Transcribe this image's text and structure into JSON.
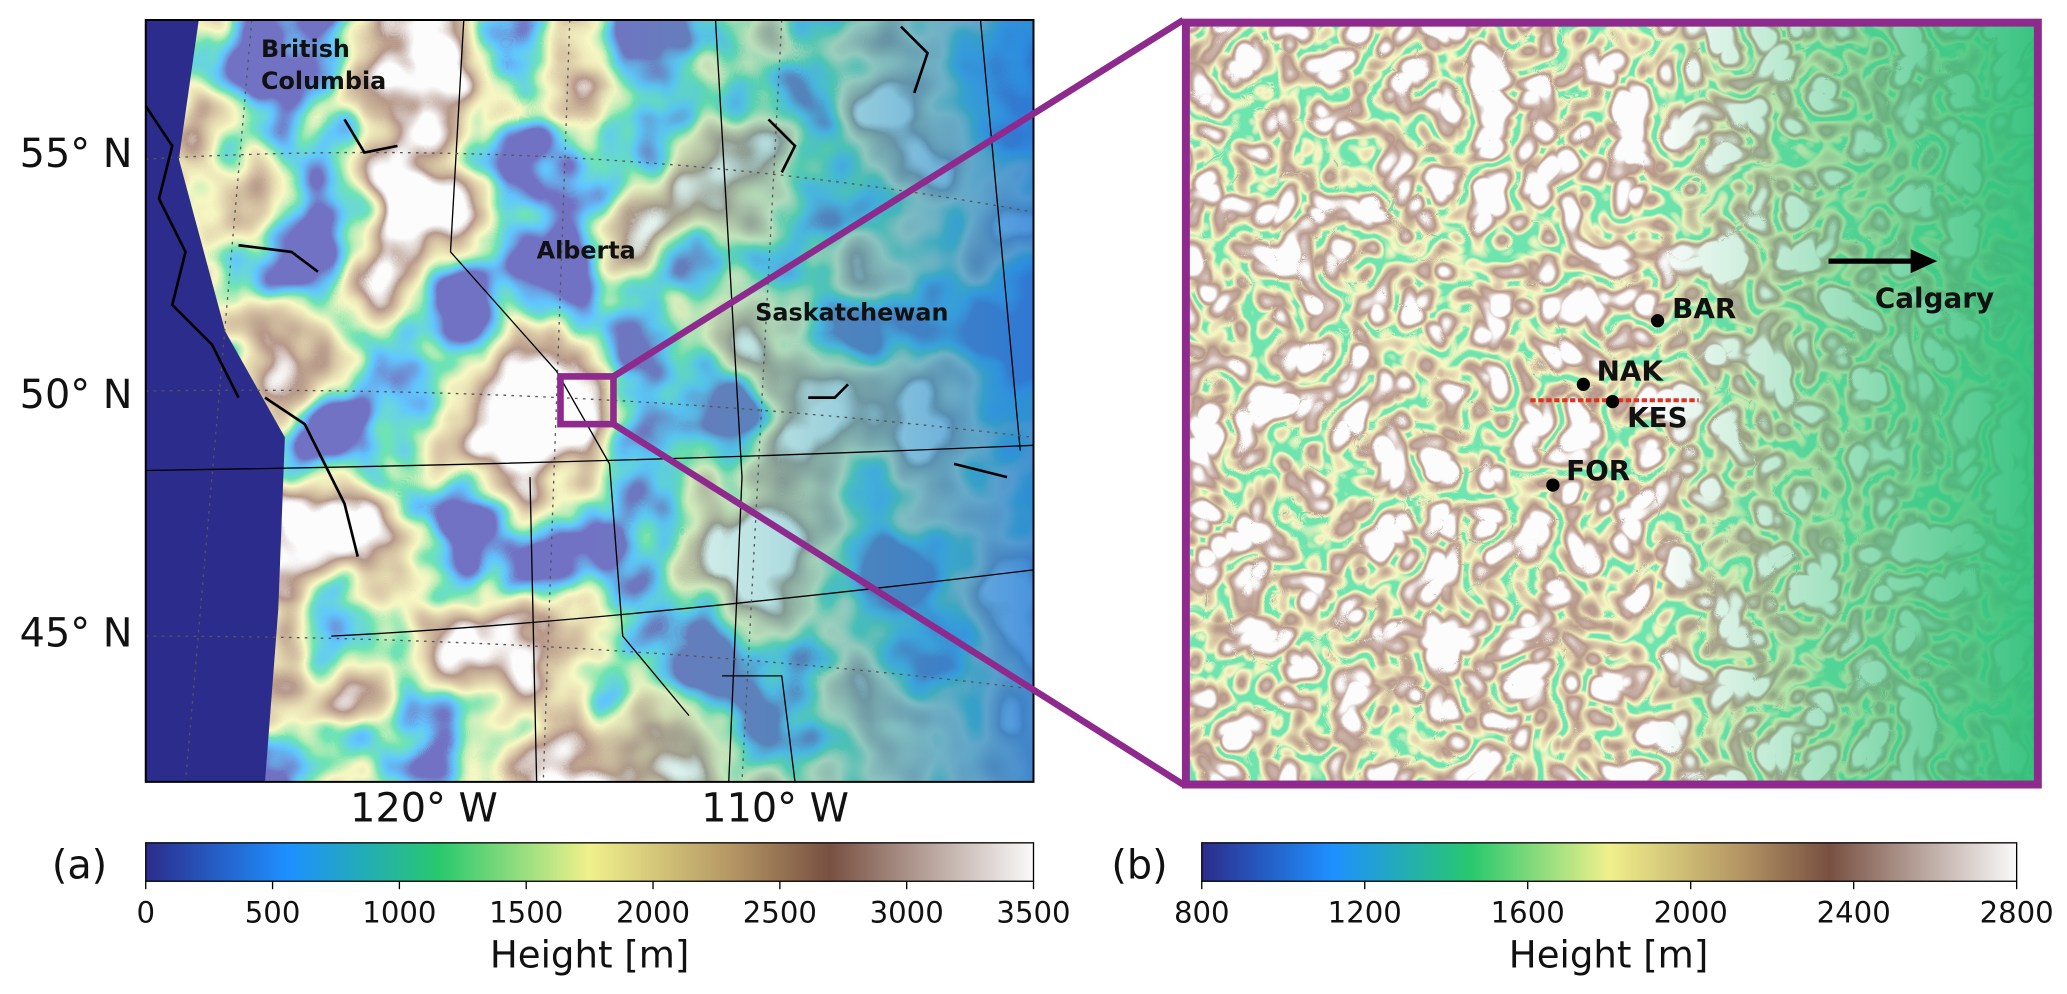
{
  "panel_a": {
    "label": "(a)",
    "lat_labels": [
      "55° N",
      "50° N",
      "45° N"
    ],
    "lon_labels": [
      "120° W",
      "110° W"
    ],
    "regions": {
      "bc": [
        "British",
        "Columbia"
      ],
      "alberta": "Alberta",
      "saskatchewan": "Saskatchewan"
    },
    "colorbar": {
      "clim": [
        0,
        3500
      ],
      "ticks": [
        0,
        500,
        1000,
        1500,
        2000,
        2500,
        3000,
        3500
      ],
      "label": "Height [m]"
    }
  },
  "panel_b": {
    "label": "(b)",
    "stations": [
      "BAR",
      "NAK",
      "KES",
      "FOR"
    ],
    "arrow_label": "Calgary",
    "colorbar": {
      "clim": [
        800,
        2800
      ],
      "ticks": [
        800,
        1200,
        1600,
        2000,
        2400,
        2800
      ],
      "label": "Height [m]"
    }
  }
}
